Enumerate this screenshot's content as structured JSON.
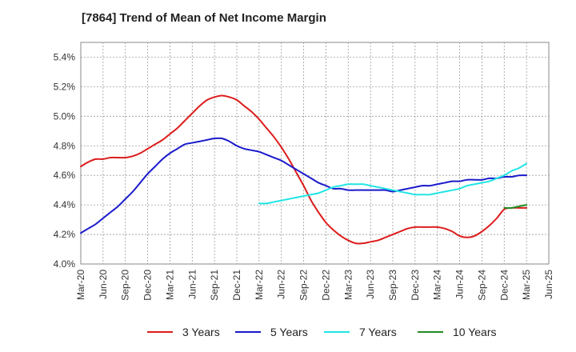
{
  "chart_data": {
    "type": "line",
    "title": "[7864]  Trend of Mean of Net Income Margin",
    "xlabel": "",
    "ylabel": "",
    "ylim": [
      0.04,
      0.055
    ],
    "y_ticks": [
      "4.0%",
      "4.2%",
      "4.4%",
      "4.6%",
      "4.8%",
      "5.0%",
      "5.2%",
      "5.4%"
    ],
    "y_tick_values": [
      0.04,
      0.042,
      0.044,
      0.046,
      0.048,
      0.05,
      0.052,
      0.054
    ],
    "x_ticks": [
      "Mar-20",
      "Jun-20",
      "Sep-20",
      "Dec-20",
      "Mar-21",
      "Jun-21",
      "Sep-21",
      "Dec-21",
      "Mar-22",
      "Jun-22",
      "Sep-22",
      "Dec-22",
      "Mar-23",
      "Jun-23",
      "Sep-23",
      "Dec-23",
      "Mar-24",
      "Jun-24",
      "Sep-24",
      "Dec-24",
      "Mar-25",
      "Jun-25"
    ],
    "grid": true,
    "legend_position": "bottom",
    "series": [
      {
        "name": "3 Years",
        "color": "#dd1c1c",
        "x": [
          "Mar-20",
          "Apr-20",
          "May-20",
          "Jun-20",
          "Jul-20",
          "Aug-20",
          "Sep-20",
          "Oct-20",
          "Nov-20",
          "Dec-20",
          "Jan-21",
          "Feb-21",
          "Mar-21",
          "Apr-21",
          "May-21",
          "Jun-21",
          "Jul-21",
          "Aug-21",
          "Sep-21",
          "Oct-21",
          "Nov-21",
          "Dec-21",
          "Jan-22",
          "Feb-22",
          "Mar-22",
          "Apr-22",
          "May-22",
          "Jun-22",
          "Jul-22",
          "Aug-22",
          "Sep-22",
          "Oct-22",
          "Nov-22",
          "Dec-22",
          "Jan-23",
          "Feb-23",
          "Mar-23",
          "Apr-23",
          "May-23",
          "Jun-23",
          "Jul-23",
          "Aug-23",
          "Sep-23",
          "Oct-23",
          "Nov-23",
          "Dec-23",
          "Jan-24",
          "Feb-24",
          "Mar-24",
          "Apr-24",
          "May-24",
          "Jun-24",
          "Jul-24",
          "Aug-24",
          "Sep-24",
          "Oct-24",
          "Nov-24",
          "Dec-24",
          "Jan-25",
          "Feb-25",
          "Mar-25"
        ],
        "values": [
          0.0466,
          0.0469,
          0.0471,
          0.0471,
          0.0472,
          0.0472,
          0.0472,
          0.0473,
          0.0475,
          0.0478,
          0.0481,
          0.0484,
          0.0488,
          0.0492,
          0.0497,
          0.0502,
          0.0507,
          0.0511,
          0.0513,
          0.0514,
          0.0513,
          0.0511,
          0.0507,
          0.0503,
          0.0498,
          0.0492,
          0.0486,
          0.0479,
          0.0471,
          0.0462,
          0.0453,
          0.0443,
          0.0435,
          0.0428,
          0.0423,
          0.0419,
          0.0416,
          0.0414,
          0.0414,
          0.0415,
          0.0416,
          0.0418,
          0.042,
          0.0422,
          0.0424,
          0.0425,
          0.0425,
          0.0425,
          0.0425,
          0.0424,
          0.0422,
          0.0419,
          0.0418,
          0.0419,
          0.0422,
          0.0426,
          0.0431,
          0.0437,
          0.0438,
          0.0438,
          0.0438
        ]
      },
      {
        "name": "5 Years",
        "color": "#1a1acc",
        "x": [
          "Mar-20",
          "Apr-20",
          "May-20",
          "Jun-20",
          "Jul-20",
          "Aug-20",
          "Sep-20",
          "Oct-20",
          "Nov-20",
          "Dec-20",
          "Jan-21",
          "Feb-21",
          "Mar-21",
          "Apr-21",
          "May-21",
          "Jun-21",
          "Jul-21",
          "Aug-21",
          "Sep-21",
          "Oct-21",
          "Nov-21",
          "Dec-21",
          "Jan-22",
          "Feb-22",
          "Mar-22",
          "Apr-22",
          "May-22",
          "Jun-22",
          "Jul-22",
          "Aug-22",
          "Sep-22",
          "Oct-22",
          "Nov-22",
          "Dec-22",
          "Jan-23",
          "Feb-23",
          "Mar-23",
          "Apr-23",
          "May-23",
          "Jun-23",
          "Jul-23",
          "Aug-23",
          "Sep-23",
          "Oct-23",
          "Nov-23",
          "Dec-23",
          "Jan-24",
          "Feb-24",
          "Mar-24",
          "Apr-24",
          "May-24",
          "Jun-24",
          "Jul-24",
          "Aug-24",
          "Sep-24",
          "Oct-24",
          "Nov-24",
          "Dec-24",
          "Jan-25",
          "Feb-25",
          "Mar-25"
        ],
        "values": [
          0.0421,
          0.0424,
          0.0427,
          0.0431,
          0.0435,
          0.0439,
          0.0444,
          0.0449,
          0.0455,
          0.0461,
          0.0466,
          0.0471,
          0.0475,
          0.0478,
          0.0481,
          0.0482,
          0.0483,
          0.0484,
          0.0485,
          0.0485,
          0.0483,
          0.048,
          0.0478,
          0.0477,
          0.0476,
          0.0474,
          0.0472,
          0.047,
          0.0467,
          0.0464,
          0.0461,
          0.0458,
          0.0455,
          0.0453,
          0.0451,
          0.0451,
          0.045,
          0.045,
          0.045,
          0.045,
          0.045,
          0.045,
          0.0449,
          0.045,
          0.0451,
          0.0452,
          0.0453,
          0.0453,
          0.0454,
          0.0455,
          0.0456,
          0.0456,
          0.0457,
          0.0457,
          0.0457,
          0.0458,
          0.0458,
          0.0459,
          0.0459,
          0.046,
          0.046
        ]
      },
      {
        "name": "7 Years",
        "color": "#22e5e5",
        "x": [
          "Mar-22",
          "Apr-22",
          "May-22",
          "Jun-22",
          "Jul-22",
          "Aug-22",
          "Sep-22",
          "Oct-22",
          "Nov-22",
          "Dec-22",
          "Jan-23",
          "Feb-23",
          "Mar-23",
          "Apr-23",
          "May-23",
          "Jun-23",
          "Jul-23",
          "Aug-23",
          "Sep-23",
          "Oct-23",
          "Nov-23",
          "Dec-23",
          "Jan-24",
          "Feb-24",
          "Mar-24",
          "Apr-24",
          "May-24",
          "Jun-24",
          "Jul-24",
          "Aug-24",
          "Sep-24",
          "Oct-24",
          "Nov-24",
          "Dec-24",
          "Jan-25",
          "Feb-25",
          "Mar-25"
        ],
        "values": [
          0.0441,
          0.0441,
          0.0442,
          0.0443,
          0.0444,
          0.0445,
          0.0446,
          0.0447,
          0.0448,
          0.045,
          0.0452,
          0.0453,
          0.0454,
          0.0454,
          0.0454,
          0.0453,
          0.0452,
          0.0451,
          0.045,
          0.0449,
          0.0448,
          0.0447,
          0.0447,
          0.0447,
          0.0448,
          0.0449,
          0.045,
          0.0451,
          0.0453,
          0.0454,
          0.0455,
          0.0456,
          0.0458,
          0.046,
          0.0463,
          0.0465,
          0.0468
        ]
      },
      {
        "name": "10 Years",
        "color": "#228b22",
        "x": [
          "Dec-24",
          "Jan-25",
          "Feb-25",
          "Mar-25"
        ],
        "values": [
          0.0438,
          0.0438,
          0.0439,
          0.044
        ]
      }
    ]
  }
}
